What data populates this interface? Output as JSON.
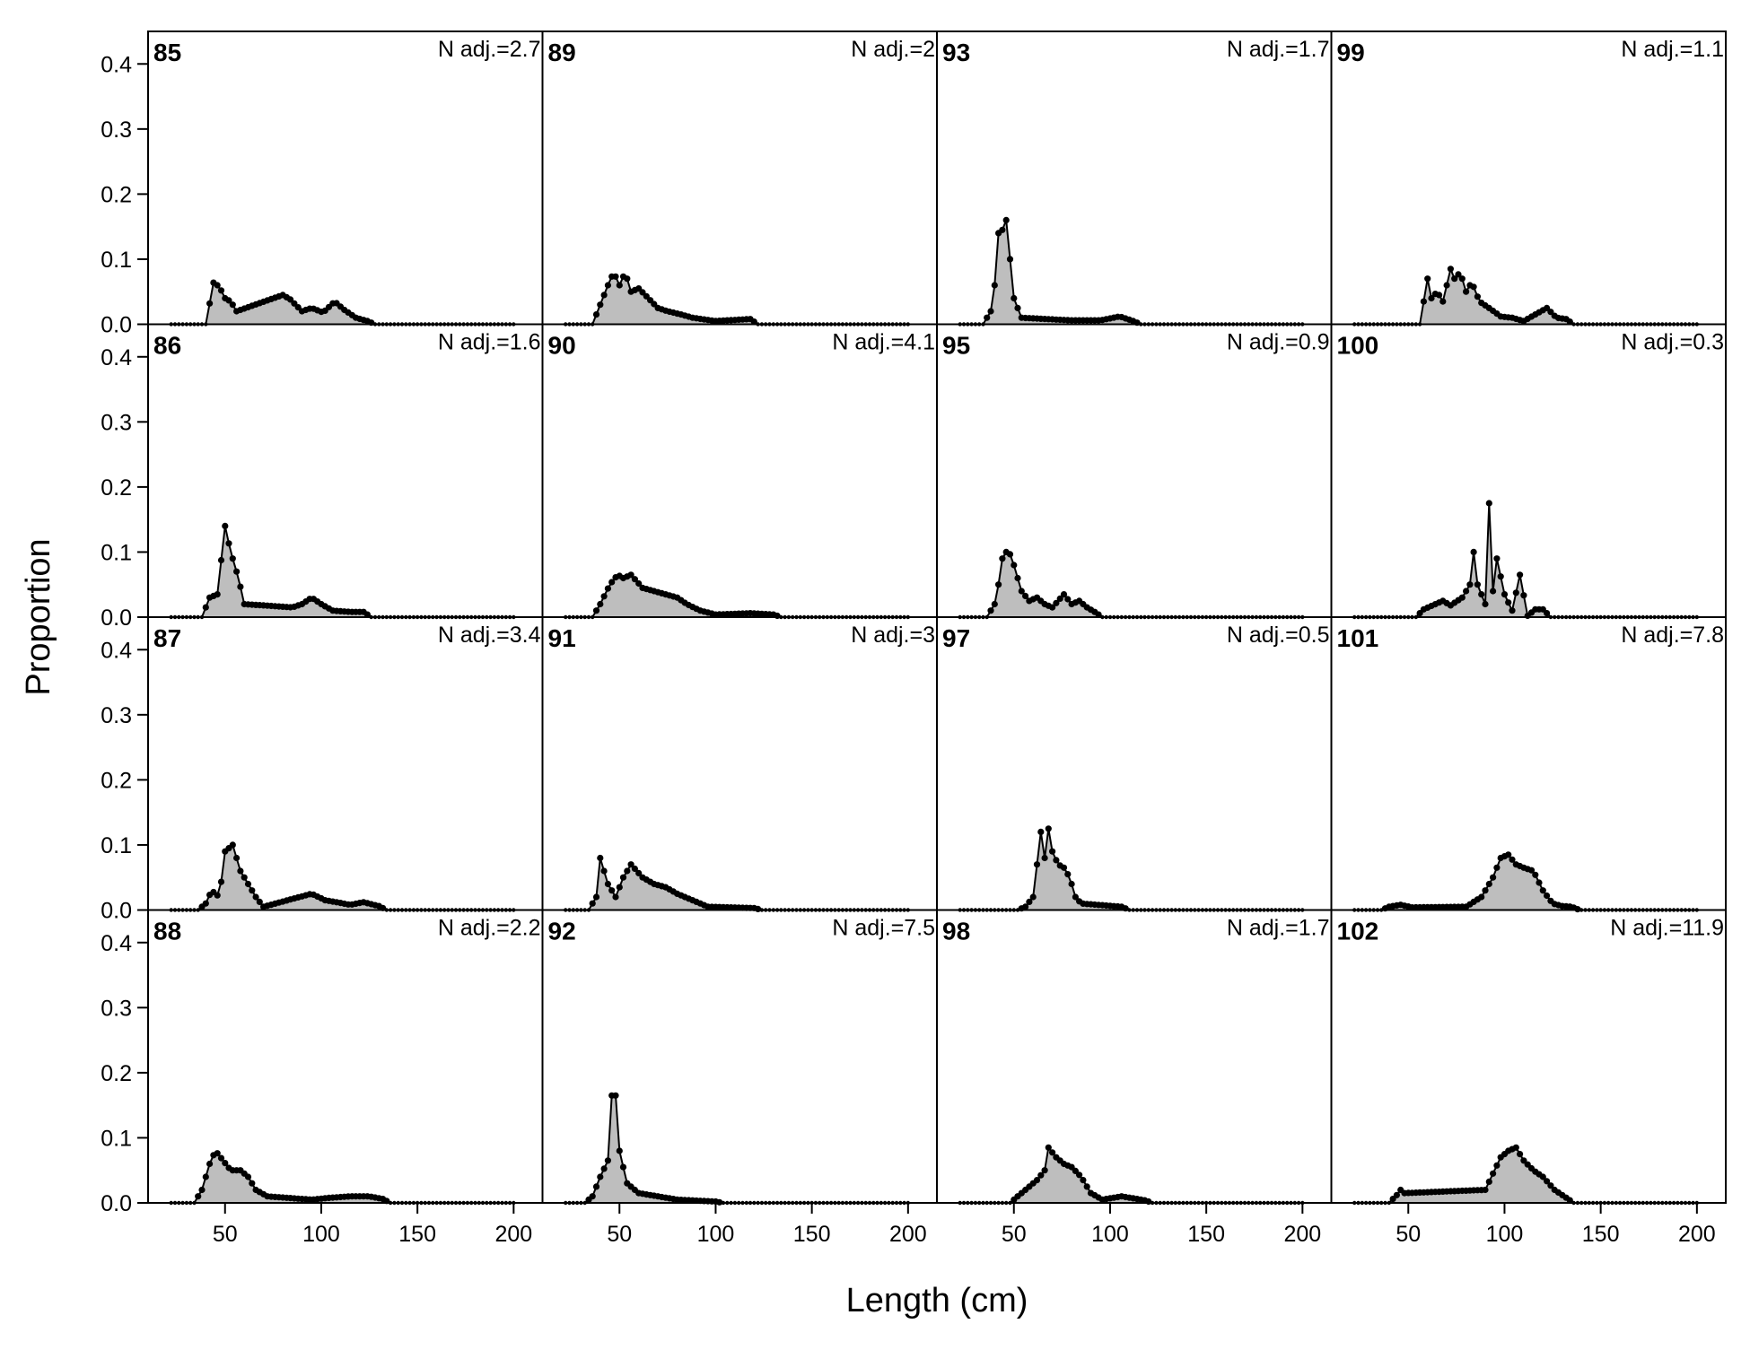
{
  "chart_data": {
    "type": "area",
    "xlabel": "Length (cm)",
    "ylabel": "Proportion",
    "xlim": [
      10,
      215
    ],
    "ylim": [
      0,
      0.45
    ],
    "x_ticks": [
      50,
      100,
      150,
      200
    ],
    "y_ticks": [
      0.0,
      0.1,
      0.2,
      0.3,
      0.4
    ],
    "y_tick_labels": [
      "0.0",
      "0.1",
      "0.2",
      "0.3",
      "0.4"
    ],
    "x_range": [
      22,
      200
    ],
    "x_step": 2,
    "grid": false,
    "layout": {
      "rows": 4,
      "cols": 4,
      "order": "column-major"
    },
    "colors": {
      "fill": "#bebebe",
      "line": "#000000",
      "point": "#000000"
    },
    "panels": [
      {
        "label": "85",
        "n_adj": "N adj.=2.7",
        "peaks": [
          [
            44,
            0.064
          ],
          [
            47,
            0.058
          ],
          [
            50,
            0.04
          ],
          [
            53,
            0.035
          ],
          [
            56,
            0.02
          ],
          [
            80,
            0.045
          ],
          [
            84,
            0.038
          ],
          [
            90,
            0.02
          ],
          [
            95,
            0.025
          ],
          [
            101,
            0.018
          ],
          [
            107,
            0.035
          ],
          [
            112,
            0.022
          ],
          [
            118,
            0.01
          ],
          [
            124,
            0.005
          ]
        ]
      },
      {
        "label": "86",
        "n_adj": "N adj.=1.6",
        "peaks": [
          [
            42,
            0.03
          ],
          [
            46,
            0.035
          ],
          [
            50,
            0.14
          ],
          [
            53,
            0.1
          ],
          [
            57,
            0.06
          ],
          [
            60,
            0.02
          ],
          [
            85,
            0.015
          ],
          [
            90,
            0.02
          ],
          [
            95,
            0.03
          ],
          [
            100,
            0.02
          ],
          [
            106,
            0.01
          ],
          [
            115,
            0.008
          ],
          [
            122,
            0.008
          ]
        ]
      },
      {
        "label": "87",
        "n_adj": "N adj.=3.4",
        "peaks": [
          [
            40,
            0.01
          ],
          [
            43,
            0.03
          ],
          [
            47,
            0.02
          ],
          [
            50,
            0.09
          ],
          [
            54,
            0.1
          ],
          [
            58,
            0.06
          ],
          [
            62,
            0.04
          ],
          [
            66,
            0.02
          ],
          [
            70,
            0.005
          ],
          [
            95,
            0.025
          ],
          [
            102,
            0.015
          ],
          [
            108,
            0.012
          ],
          [
            115,
            0.008
          ],
          [
            122,
            0.012
          ],
          [
            130,
            0.006
          ]
        ]
      },
      {
        "label": "88",
        "n_adj": "N adj.=2.2",
        "peaks": [
          [
            38,
            0.02
          ],
          [
            42,
            0.06
          ],
          [
            45,
            0.08
          ],
          [
            49,
            0.065
          ],
          [
            53,
            0.05
          ],
          [
            58,
            0.05
          ],
          [
            62,
            0.04
          ],
          [
            66,
            0.02
          ],
          [
            72,
            0.01
          ],
          [
            95,
            0.005
          ],
          [
            105,
            0.008
          ],
          [
            115,
            0.01
          ],
          [
            125,
            0.01
          ],
          [
            132,
            0.006
          ]
        ]
      },
      {
        "label": "89",
        "n_adj": "N adj.=2",
        "peaks": [
          [
            40,
            0.03
          ],
          [
            44,
            0.06
          ],
          [
            47,
            0.08
          ],
          [
            50,
            0.06
          ],
          [
            53,
            0.08
          ],
          [
            56,
            0.05
          ],
          [
            60,
            0.055
          ],
          [
            65,
            0.04
          ],
          [
            70,
            0.025
          ],
          [
            75,
            0.02
          ],
          [
            82,
            0.015
          ],
          [
            88,
            0.01
          ],
          [
            100,
            0.005
          ],
          [
            118,
            0.008
          ]
        ]
      },
      {
        "label": "90",
        "n_adj": "N adj.=4.1",
        "peaks": [
          [
            40,
            0.02
          ],
          [
            45,
            0.05
          ],
          [
            49,
            0.065
          ],
          [
            52,
            0.06
          ],
          [
            56,
            0.065
          ],
          [
            62,
            0.045
          ],
          [
            68,
            0.04
          ],
          [
            74,
            0.035
          ],
          [
            80,
            0.03
          ],
          [
            85,
            0.02
          ],
          [
            92,
            0.01
          ],
          [
            100,
            0.004
          ],
          [
            118,
            0.006
          ],
          [
            130,
            0.004
          ]
        ]
      },
      {
        "label": "91",
        "n_adj": "N adj.=3",
        "peaks": [
          [
            38,
            0.02
          ],
          [
            40,
            0.08
          ],
          [
            44,
            0.04
          ],
          [
            48,
            0.02
          ],
          [
            52,
            0.05
          ],
          [
            56,
            0.07
          ],
          [
            62,
            0.05
          ],
          [
            68,
            0.04
          ],
          [
            74,
            0.035
          ],
          [
            80,
            0.025
          ],
          [
            88,
            0.015
          ],
          [
            96,
            0.005
          ],
          [
            120,
            0.003
          ]
        ]
      },
      {
        "label": "92",
        "n_adj": "N adj.=7.5",
        "peaks": [
          [
            36,
            0.01
          ],
          [
            40,
            0.04
          ],
          [
            44,
            0.065
          ],
          [
            46,
            0.165
          ],
          [
            48,
            0.165
          ],
          [
            50,
            0.08
          ],
          [
            54,
            0.03
          ],
          [
            60,
            0.015
          ],
          [
            70,
            0.01
          ],
          [
            80,
            0.005
          ],
          [
            100,
            0.002
          ]
        ]
      },
      {
        "label": "93",
        "n_adj": "N adj.=1.7",
        "peaks": [
          [
            38,
            0.02
          ],
          [
            40,
            0.06
          ],
          [
            42,
            0.14
          ],
          [
            44,
            0.145
          ],
          [
            46,
            0.16
          ],
          [
            48,
            0.1
          ],
          [
            50,
            0.04
          ],
          [
            54,
            0.01
          ],
          [
            80,
            0.006
          ],
          [
            95,
            0.006
          ],
          [
            105,
            0.012
          ],
          [
            112,
            0.005
          ]
        ]
      },
      {
        "label": "95",
        "n_adj": "N adj.=0.9",
        "peaks": [
          [
            40,
            0.02
          ],
          [
            42,
            0.05
          ],
          [
            44,
            0.09
          ],
          [
            47,
            0.105
          ],
          [
            50,
            0.08
          ],
          [
            54,
            0.04
          ],
          [
            58,
            0.025
          ],
          [
            62,
            0.03
          ],
          [
            66,
            0.02
          ],
          [
            70,
            0.015
          ],
          [
            76,
            0.035
          ],
          [
            80,
            0.02
          ],
          [
            84,
            0.025
          ],
          [
            88,
            0.015
          ],
          [
            92,
            0.008
          ]
        ]
      },
      {
        "label": "97",
        "n_adj": "N adj.=0.5",
        "peaks": [
          [
            56,
            0.005
          ],
          [
            60,
            0.02
          ],
          [
            64,
            0.12
          ],
          [
            66,
            0.08
          ],
          [
            68,
            0.125
          ],
          [
            70,
            0.09
          ],
          [
            73,
            0.07
          ],
          [
            76,
            0.065
          ],
          [
            79,
            0.05
          ],
          [
            82,
            0.02
          ],
          [
            85,
            0.01
          ],
          [
            106,
            0.005
          ]
        ]
      },
      {
        "label": "98",
        "n_adj": "N adj.=1.7",
        "peaks": [
          [
            52,
            0.01
          ],
          [
            58,
            0.025
          ],
          [
            62,
            0.035
          ],
          [
            66,
            0.05
          ],
          [
            68,
            0.085
          ],
          [
            72,
            0.07
          ],
          [
            76,
            0.06
          ],
          [
            80,
            0.055
          ],
          [
            85,
            0.04
          ],
          [
            90,
            0.015
          ],
          [
            96,
            0.005
          ],
          [
            106,
            0.01
          ],
          [
            118,
            0.004
          ]
        ]
      },
      {
        "label": "99",
        "n_adj": "N adj.=1.1",
        "peaks": [
          [
            60,
            0.07
          ],
          [
            62,
            0.04
          ],
          [
            65,
            0.05
          ],
          [
            68,
            0.035
          ],
          [
            72,
            0.085
          ],
          [
            74,
            0.07
          ],
          [
            77,
            0.08
          ],
          [
            80,
            0.05
          ],
          [
            83,
            0.065
          ],
          [
            87,
            0.035
          ],
          [
            92,
            0.025
          ],
          [
            98,
            0.012
          ],
          [
            104,
            0.01
          ],
          [
            110,
            0.005
          ],
          [
            122,
            0.025
          ],
          [
            127,
            0.01
          ],
          [
            132,
            0.008
          ]
        ]
      },
      {
        "label": "100",
        "n_adj": "N adj.=0.3",
        "peaks": [
          [
            58,
            0.012
          ],
          [
            68,
            0.025
          ],
          [
            72,
            0.018
          ],
          [
            78,
            0.03
          ],
          [
            82,
            0.05
          ],
          [
            84,
            0.1
          ],
          [
            86,
            0.05
          ],
          [
            90,
            0.02
          ],
          [
            92,
            0.175
          ],
          [
            94,
            0.04
          ],
          [
            96,
            0.09
          ],
          [
            100,
            0.035
          ],
          [
            104,
            0.01
          ],
          [
            108,
            0.065
          ],
          [
            112,
            0.002
          ],
          [
            116,
            0.012
          ],
          [
            120,
            0.012
          ]
        ]
      },
      {
        "label": "101",
        "n_adj": "N adj.=7.8",
        "peaks": [
          [
            40,
            0.005
          ],
          [
            46,
            0.008
          ],
          [
            52,
            0.004
          ],
          [
            80,
            0.005
          ],
          [
            88,
            0.02
          ],
          [
            94,
            0.05
          ],
          [
            98,
            0.08
          ],
          [
            102,
            0.085
          ],
          [
            106,
            0.07
          ],
          [
            110,
            0.065
          ],
          [
            115,
            0.06
          ],
          [
            120,
            0.03
          ],
          [
            125,
            0.01
          ],
          [
            130,
            0.006
          ],
          [
            135,
            0.005
          ]
        ]
      },
      {
        "label": "102",
        "n_adj": "N adj.=11.9",
        "peaks": [
          [
            44,
            0.012
          ],
          [
            46,
            0.02
          ],
          [
            48,
            0.015
          ],
          [
            90,
            0.02
          ],
          [
            94,
            0.045
          ],
          [
            98,
            0.07
          ],
          [
            102,
            0.08
          ],
          [
            106,
            0.085
          ],
          [
            110,
            0.065
          ],
          [
            115,
            0.05
          ],
          [
            120,
            0.04
          ],
          [
            126,
            0.02
          ],
          [
            132,
            0.008
          ]
        ]
      }
    ]
  }
}
